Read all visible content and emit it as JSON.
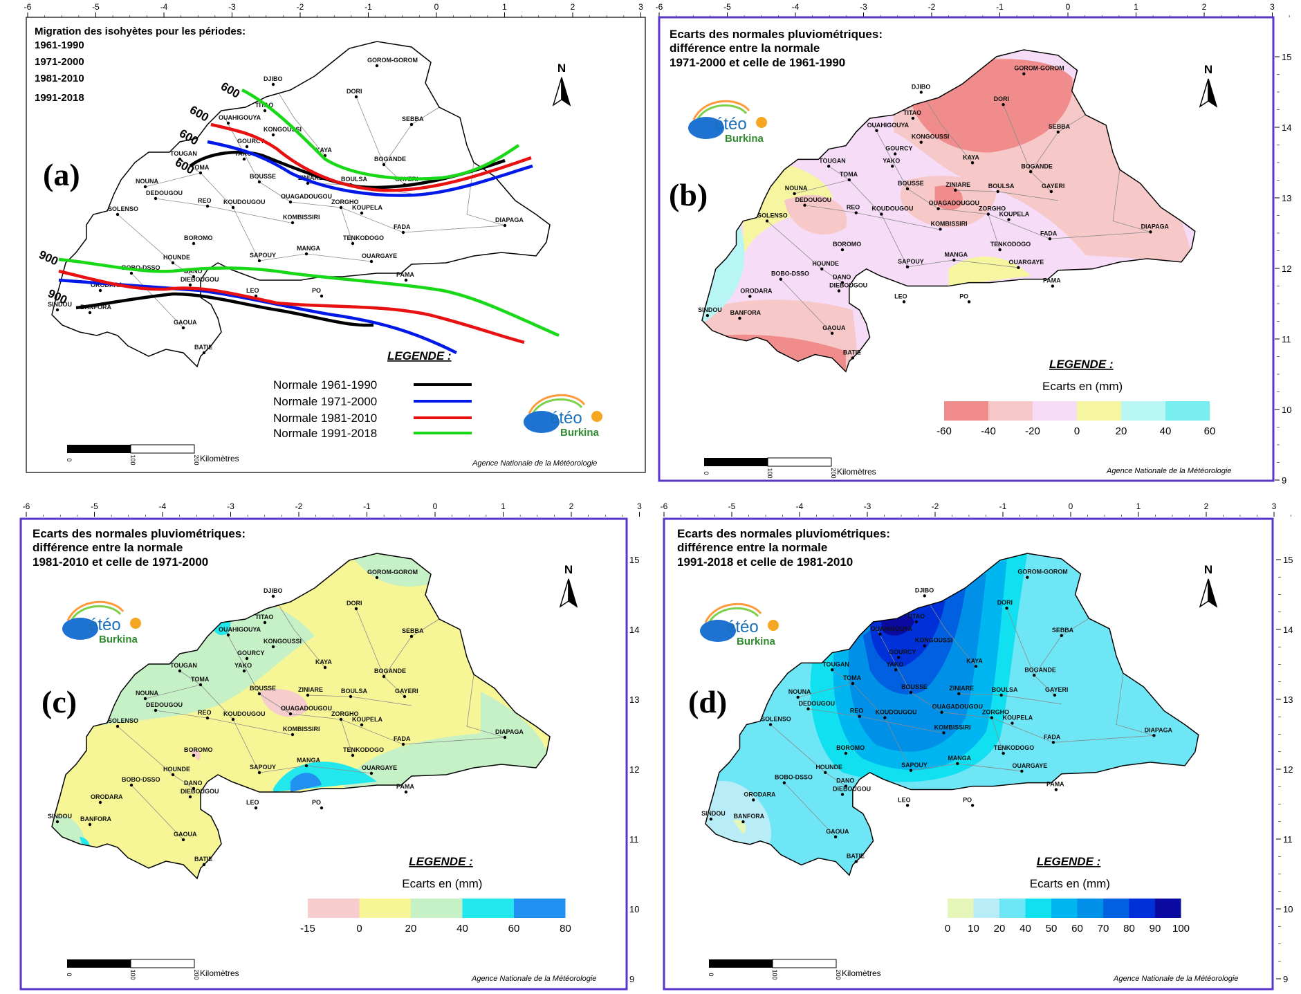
{
  "colors": {
    "panel_frame": "#5b35c9",
    "frame_a": "#000000",
    "country_fill": "#ffffff",
    "boundary": "#000000",
    "logo_cloud": "#1e73d2",
    "logo_sun": "#f5a623",
    "logo_text": "#1b6fb8"
  },
  "axes": {
    "top_ticks": [
      "-6",
      "-5",
      "-4",
      "-3",
      "-2",
      "-1",
      "0",
      "1",
      "2",
      "3"
    ],
    "right_ticks": [
      "15",
      "14",
      "13",
      "12",
      "11",
      "10",
      "9"
    ]
  },
  "agency": "Agence Nationale de la Météorologie",
  "scale": {
    "unit": "Kilomètres",
    "labels": [
      "0",
      "100",
      "200"
    ]
  },
  "north_label": "N",
  "logo": {
    "text": "étéo",
    "sub": "Burkina"
  },
  "cities": [
    {
      "name": "GOROM-GOROM"
    },
    {
      "name": "DJIBO"
    },
    {
      "name": "DORI"
    },
    {
      "name": "TITAO"
    },
    {
      "name": "OUAHIGOUYA"
    },
    {
      "name": "KONGOUSSI"
    },
    {
      "name": "SEBBA"
    },
    {
      "name": "GOURCY"
    },
    {
      "name": "KAYA"
    },
    {
      "name": "TOUGAN"
    },
    {
      "name": "YAKO"
    },
    {
      "name": "BOGANDE"
    },
    {
      "name": "TOMA"
    },
    {
      "name": "NOUNA"
    },
    {
      "name": "BOUSSE"
    },
    {
      "name": "ZINIARE"
    },
    {
      "name": "BOULSA"
    },
    {
      "name": "GAYERI"
    },
    {
      "name": "DEDOUGOU"
    },
    {
      "name": "REO"
    },
    {
      "name": "KOUDOUGOU"
    },
    {
      "name": "OUAGADOUGOU"
    },
    {
      "name": "ZORGHO"
    },
    {
      "name": "KOUPELA"
    },
    {
      "name": "SOLENSO"
    },
    {
      "name": "KOMBISSIRI"
    },
    {
      "name": "FADA"
    },
    {
      "name": "DIAPAGA"
    },
    {
      "name": "TENKODOGO"
    },
    {
      "name": "BOROMO"
    },
    {
      "name": "HOUNDE"
    },
    {
      "name": "MANGA"
    },
    {
      "name": "SAPOUY"
    },
    {
      "name": "OUARGAYE"
    },
    {
      "name": "BOBO-DSSO"
    },
    {
      "name": "DANO"
    },
    {
      "name": "DIEBOUGOU"
    },
    {
      "name": "PAMA"
    },
    {
      "name": "LEO"
    },
    {
      "name": "PO"
    },
    {
      "name": "ORODARA"
    },
    {
      "name": "SINDOU"
    },
    {
      "name": "BANFORA"
    },
    {
      "name": "GAOUA"
    },
    {
      "name": "BATIE"
    }
  ],
  "panel_a": {
    "letter": "(a)",
    "title_lines": [
      "Migration des isohyètes pour les périodes:",
      "1961-1990",
      "1971-2000",
      "1981-2010",
      "1991-2018"
    ],
    "legend_title": "LEGENDE :",
    "legend": [
      {
        "label": "Normale 1961-1990",
        "color": "#000000"
      },
      {
        "label": "Normale 1971-2000",
        "color": "#0018e8"
      },
      {
        "label": "Normale 1981-2010",
        "color": "#e81010"
      },
      {
        "label": "Normale 1991-2018",
        "color": "#18d818"
      }
    ],
    "isohyet_labels": [
      "600",
      "600",
      "600",
      "600",
      "900",
      "900"
    ],
    "scale_labels": [
      "0",
      "100",
      "200"
    ]
  },
  "panel_b": {
    "letter": "(b)",
    "title_lines": [
      "Ecarts des normales pluviométriques:",
      "différence entre la normale",
      "1971-2000 et  celle de 1961-1990"
    ],
    "legend_title": "LEGENDE :",
    "legend_subtitle": "Ecarts en (mm)",
    "colorbar": [
      "#f08c8c",
      "#f6c8c8",
      "#f6dcf6",
      "#f6f6a0",
      "#b8f6f6",
      "#78eef0"
    ],
    "colorbar_labels": [
      "-60",
      "-40",
      "-20",
      "0",
      "20",
      "40",
      "60"
    ]
  },
  "panel_c": {
    "letter": "(c)",
    "title_lines": [
      "Ecarts des normales pluviométriques:",
      "différence entre la normale",
      "1981-2010 et  celle de 1971-2000"
    ],
    "legend_title": "LEGENDE :",
    "legend_subtitle": "Ecarts en (mm)",
    "colorbar": [
      "#f6cccc",
      "#f6f696",
      "#c6f0c6",
      "#22e8ee",
      "#2290f0"
    ],
    "colorbar_labels": [
      "-15",
      "0",
      "20",
      "40",
      "60",
      "80"
    ]
  },
  "panel_d": {
    "letter": "(d)",
    "title_lines": [
      "Ecarts des normales pluviométriques:",
      "différence entre la normale",
      "1991-2018 et  celle de 1981-2010"
    ],
    "legend_title": "LEGENDE :",
    "legend_subtitle": "Ecarts en (mm)",
    "colorbar": [
      "#e6f6b8",
      "#b8ecf6",
      "#6ee6f6",
      "#10e0f0",
      "#00b6f0",
      "#0090e8",
      "#0060e0",
      "#0030d8",
      "#0a0aa0"
    ],
    "colorbar_labels": [
      "0",
      "10",
      "20",
      "40",
      "50",
      "60",
      "70",
      "80",
      "90",
      "100"
    ]
  }
}
